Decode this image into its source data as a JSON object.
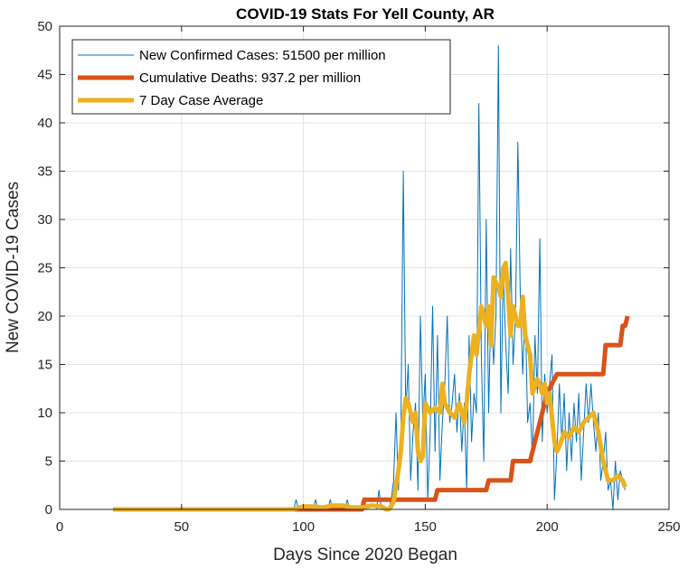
{
  "chart_data": {
    "type": "line",
    "title": "COVID-19 Stats For Yell County, AR",
    "xlabel": "Days Since 2020 Began",
    "ylabel": "New COVID-19 Cases",
    "xlim": [
      0,
      250
    ],
    "ylim": [
      0,
      50
    ],
    "xticks": [
      0,
      50,
      100,
      150,
      200,
      250
    ],
    "yticks": [
      0,
      5,
      10,
      15,
      20,
      25,
      30,
      35,
      40,
      45,
      50
    ],
    "grid": true,
    "legend_position": "top-left",
    "series": [
      {
        "name": "New Confirmed Cases: 51500 per million",
        "color": "#0072BD",
        "width": 1,
        "points": [
          [
            22,
            0
          ],
          [
            96,
            0
          ],
          [
            97,
            1
          ],
          [
            98,
            0
          ],
          [
            104,
            0
          ],
          [
            105,
            1
          ],
          [
            106,
            0
          ],
          [
            110,
            0
          ],
          [
            111,
            1
          ],
          [
            112,
            0
          ],
          [
            117,
            0
          ],
          [
            118,
            1
          ],
          [
            119,
            0
          ],
          [
            124,
            0
          ],
          [
            125,
            1
          ],
          [
            126,
            0
          ],
          [
            130,
            0
          ],
          [
            131,
            2
          ],
          [
            132,
            0
          ],
          [
            135,
            0
          ],
          [
            136,
            1
          ],
          [
            137,
            3
          ],
          [
            138,
            10
          ],
          [
            139,
            2
          ],
          [
            140,
            8
          ],
          [
            141,
            35
          ],
          [
            142,
            10
          ],
          [
            143,
            15
          ],
          [
            144,
            3
          ],
          [
            145,
            8
          ],
          [
            146,
            11
          ],
          [
            147,
            2
          ],
          [
            148,
            20
          ],
          [
            149,
            9
          ],
          [
            150,
            14
          ],
          [
            151,
            1
          ],
          [
            152,
            8
          ],
          [
            153,
            21
          ],
          [
            154,
            6
          ],
          [
            155,
            18
          ],
          [
            156,
            3
          ],
          [
            157,
            9
          ],
          [
            158,
            13
          ],
          [
            159,
            20
          ],
          [
            160,
            9
          ],
          [
            161,
            11
          ],
          [
            162,
            14
          ],
          [
            163,
            8
          ],
          [
            164,
            12
          ],
          [
            165,
            6
          ],
          [
            166,
            11
          ],
          [
            167,
            2
          ],
          [
            168,
            18
          ],
          [
            169,
            7
          ],
          [
            170,
            12
          ],
          [
            171,
            10
          ],
          [
            172,
            42
          ],
          [
            173,
            16
          ],
          [
            174,
            5
          ],
          [
            175,
            30
          ],
          [
            176,
            10
          ],
          [
            177,
            22
          ],
          [
            178,
            15
          ],
          [
            179,
            20
          ],
          [
            180,
            48
          ],
          [
            181,
            10
          ],
          [
            182,
            25
          ],
          [
            183,
            17
          ],
          [
            184,
            12
          ],
          [
            185,
            27
          ],
          [
            186,
            15
          ],
          [
            187,
            20
          ],
          [
            188,
            38
          ],
          [
            189,
            22
          ],
          [
            190,
            14
          ],
          [
            191,
            21
          ],
          [
            192,
            9
          ],
          [
            193,
            11
          ],
          [
            194,
            5
          ],
          [
            195,
            18
          ],
          [
            196,
            12
          ],
          [
            197,
            28
          ],
          [
            198,
            7
          ],
          [
            199,
            14
          ],
          [
            200,
            10
          ],
          [
            201,
            13
          ],
          [
            202,
            16
          ],
          [
            203,
            1
          ],
          [
            204,
            6
          ],
          [
            205,
            13
          ],
          [
            206,
            7
          ],
          [
            207,
            12
          ],
          [
            208,
            4
          ],
          [
            209,
            10
          ],
          [
            210,
            5
          ],
          [
            211,
            11
          ],
          [
            212,
            7
          ],
          [
            213,
            12
          ],
          [
            214,
            3
          ],
          [
            215,
            8
          ],
          [
            216,
            13
          ],
          [
            217,
            9
          ],
          [
            218,
            13
          ],
          [
            219,
            9
          ],
          [
            220,
            6
          ],
          [
            221,
            10
          ],
          [
            222,
            3
          ],
          [
            223,
            5
          ],
          [
            224,
            8
          ],
          [
            225,
            2
          ],
          [
            226,
            3
          ],
          [
            227,
            0
          ],
          [
            228,
            5
          ],
          [
            229,
            1
          ],
          [
            230,
            4
          ],
          [
            231,
            3
          ],
          [
            232,
            2
          ]
        ]
      },
      {
        "name": "Cumulative Deaths: 937.2 per million",
        "color": "#D95319",
        "width": 5,
        "points": [
          [
            22,
            0
          ],
          [
            124,
            0
          ],
          [
            125,
            1
          ],
          [
            154,
            1
          ],
          [
            155,
            2
          ],
          [
            175,
            2
          ],
          [
            176,
            3
          ],
          [
            185,
            3
          ],
          [
            186,
            5
          ],
          [
            193,
            5
          ],
          [
            194,
            6
          ],
          [
            196,
            8
          ],
          [
            198,
            10
          ],
          [
            200,
            12
          ],
          [
            202,
            13
          ],
          [
            204,
            14
          ],
          [
            223,
            14
          ],
          [
            224,
            17
          ],
          [
            230,
            17
          ],
          [
            231,
            19
          ],
          [
            232,
            19
          ],
          [
            233,
            20
          ]
        ]
      },
      {
        "name": "7 Day Case Average",
        "color": "#EDB120",
        "width": 5,
        "points": [
          [
            22,
            0
          ],
          [
            96,
            0
          ],
          [
            100,
            0.3
          ],
          [
            104,
            0.3
          ],
          [
            108,
            0.2
          ],
          [
            112,
            0.4
          ],
          [
            116,
            0.4
          ],
          [
            120,
            0.2
          ],
          [
            124,
            0.2
          ],
          [
            128,
            0.4
          ],
          [
            132,
            0.3
          ],
          [
            134,
            0
          ],
          [
            135,
            0
          ],
          [
            136,
            0.3
          ],
          [
            137,
            0.8
          ],
          [
            138,
            2.5
          ],
          [
            139,
            4
          ],
          [
            140,
            6
          ],
          [
            141,
            9.5
          ],
          [
            142,
            11.5
          ],
          [
            143,
            11
          ],
          [
            144,
            10
          ],
          [
            145,
            9
          ],
          [
            146,
            10
          ],
          [
            147,
            6
          ],
          [
            148,
            5
          ],
          [
            149,
            5.5
          ],
          [
            150,
            11
          ],
          [
            152,
            10
          ],
          [
            154,
            10.5
          ],
          [
            156,
            10
          ],
          [
            157,
            13
          ],
          [
            158,
            11
          ],
          [
            160,
            10
          ],
          [
            162,
            9.5
          ],
          [
            164,
            11
          ],
          [
            166,
            9
          ],
          [
            167,
            11
          ],
          [
            168,
            14
          ],
          [
            170,
            18
          ],
          [
            171,
            16
          ],
          [
            173,
            21
          ],
          [
            175,
            19
          ],
          [
            176,
            21
          ],
          [
            177,
            17
          ],
          [
            178,
            24
          ],
          [
            180,
            23
          ],
          [
            181,
            22
          ],
          [
            182,
            25
          ],
          [
            183,
            25.5
          ],
          [
            184,
            22
          ],
          [
            185,
            18
          ],
          [
            186,
            21
          ],
          [
            187,
            20
          ],
          [
            188,
            19
          ],
          [
            189,
            19
          ],
          [
            190,
            22
          ],
          [
            191,
            18
          ],
          [
            192,
            17
          ],
          [
            193,
            16
          ],
          [
            194,
            12
          ],
          [
            196,
            13.5
          ],
          [
            198,
            12
          ],
          [
            199,
            13
          ],
          [
            200,
            11
          ],
          [
            201,
            12
          ],
          [
            202,
            9.5
          ],
          [
            203,
            7
          ],
          [
            204,
            6
          ],
          [
            205,
            6.5
          ],
          [
            207,
            8
          ],
          [
            209,
            7.5
          ],
          [
            211,
            8.5
          ],
          [
            213,
            8
          ],
          [
            215,
            9
          ],
          [
            217,
            9.5
          ],
          [
            219,
            10
          ],
          [
            221,
            8
          ],
          [
            223,
            5
          ],
          [
            224,
            4
          ],
          [
            225,
            3
          ],
          [
            227,
            3
          ],
          [
            229,
            3.5
          ],
          [
            231,
            3
          ],
          [
            232,
            2.3
          ]
        ]
      }
    ]
  }
}
